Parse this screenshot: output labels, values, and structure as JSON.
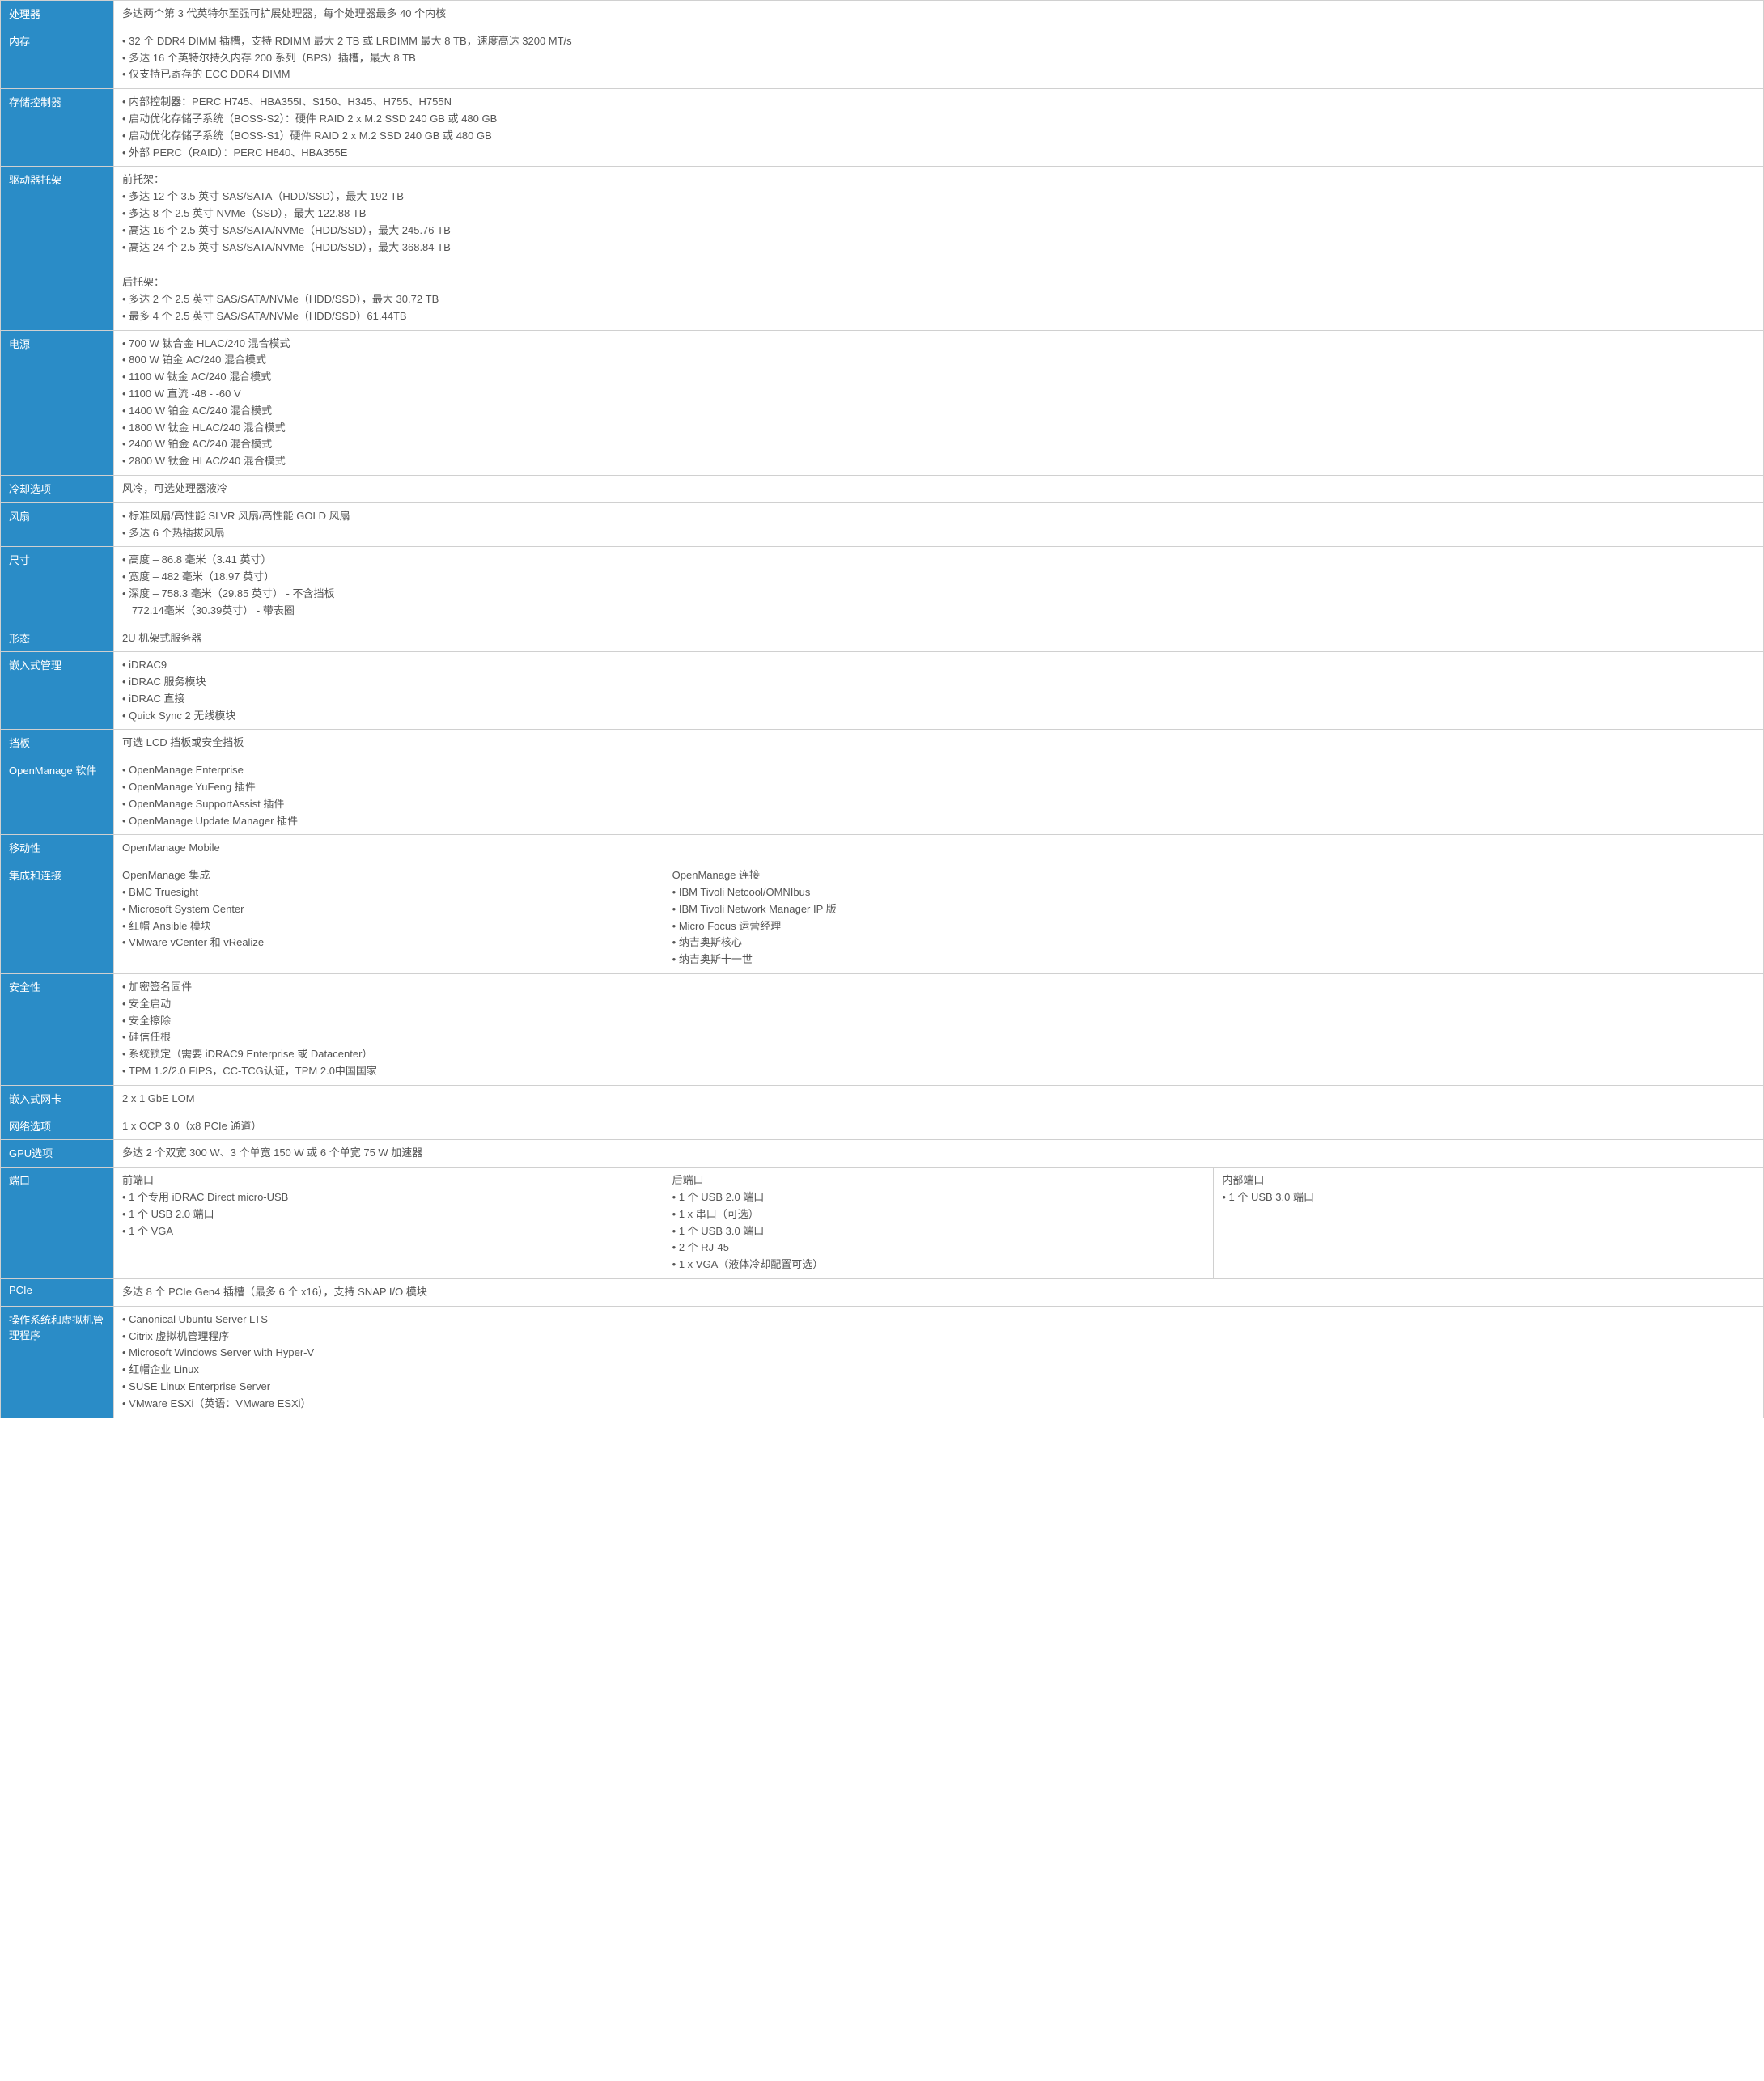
{
  "colors": {
    "header_bg": "#2a8cc7",
    "header_text": "#ffffff",
    "border": "#d0d0d0",
    "text": "#555555"
  },
  "rows": {
    "processor": {
      "label": "处理器",
      "value": "多达两个第 3 代英特尔至强可扩展处理器，每个处理器最多 40 个内核"
    },
    "memory": {
      "label": "内存",
      "lines": [
        "32 个 DDR4 DIMM 插槽，支持 RDIMM 最大 2 TB 或 LRDIMM 最大 8 TB，速度高达 3200 MT/s",
        "多达 16 个英特尔持久内存 200 系列（BPS）插槽，最大 8 TB",
        "仅支持已寄存的 ECC DDR4 DIMM"
      ]
    },
    "storage_ctrl": {
      "label": "存储控制器",
      "lines": [
        "内部控制器：PERC H745、HBA355I、S150、H345、H755、H755N",
        "启动优化存储子系统（BOSS-S2）：硬件 RAID 2 x M.2 SSD 240 GB 或 480 GB",
        "启动优化存储子系统（BOSS-S1）硬件 RAID 2 x M.2 SSD 240 GB 或 480 GB",
        "外部 PERC（RAID）：PERC H840、HBA355E"
      ]
    },
    "drive_bays": {
      "label": "驱动器托架",
      "front_header": "前托架：",
      "front_lines": [
        "多达 12 个 3.5 英寸 SAS/SATA（HDD/SSD），最大 192 TB",
        "多达 8 个 2.5 英寸 NVMe（SSD），最大 122.88 TB",
        "高达 16 个 2.5 英寸 SAS/SATA/NVMe（HDD/SSD），最大 245.76 TB",
        "高达 24 个 2.5 英寸 SAS/SATA/NVMe（HDD/SSD），最大 368.84 TB"
      ],
      "rear_header": "后托架：",
      "rear_lines": [
        "多达 2 个 2.5 英寸 SAS/SATA/NVMe（HDD/SSD），最大 30.72 TB",
        "最多 4 个 2.5 英寸 SAS/SATA/NVMe（HDD/SSD）61.44TB"
      ]
    },
    "power": {
      "label": "电源",
      "lines": [
        "700 W 钛合金 HLAC/240 混合模式",
        "800 W 铂金 AC/240 混合模式",
        "1100 W 钛金 AC/240 混合模式",
        "1100 W 直流 -48 - -60 V",
        "1400 W 铂金 AC/240 混合模式",
        "1800 W 钛金 HLAC/240 混合模式",
        "2400 W 铂金 AC/240 混合模式",
        "2800 W 钛金 HLAC/240 混合模式"
      ]
    },
    "cooling": {
      "label": "冷却选项",
      "value": "风冷，可选处理器液冷"
    },
    "fans": {
      "label": "风扇",
      "lines": [
        "标准风扇/高性能 SLVR 风扇/高性能 GOLD 风扇",
        "多达 6 个热插拔风扇"
      ]
    },
    "dimensions": {
      "label": "尺寸",
      "lines": [
        "高度 – 86.8 毫米（3.41 英寸）",
        "宽度 – 482 毫米（18.97 英寸）",
        "深度 – 758.3 毫米（29.85 英寸） - 不含挡板"
      ],
      "extra": "772.14毫米（30.39英寸） - 带表圈"
    },
    "form_factor": {
      "label": "形态",
      "value": "2U 机架式服务器"
    },
    "embedded_mgmt": {
      "label": "嵌入式管理",
      "lines": [
        "iDRAC9",
        "iDRAC 服务模块",
        "iDRAC 直接",
        "Quick Sync 2 无线模块"
      ]
    },
    "bezel": {
      "label": "挡板",
      "value": "可选 LCD 挡板或安全挡板"
    },
    "openmanage_sw": {
      "label": "OpenManage 软件",
      "lines": [
        "OpenManage Enterprise",
        "OpenManage YuFeng 插件",
        "OpenManage SupportAssist 插件",
        "OpenManage Update Manager 插件"
      ]
    },
    "mobility": {
      "label": "移动性",
      "value": "OpenManage Mobile"
    },
    "integration": {
      "label": "集成和连接",
      "left_header": "OpenManage 集成",
      "left_lines": [
        "BMC Truesight",
        "Microsoft System Center",
        "红帽 Ansible 模块",
        "VMware vCenter 和 vRealize"
      ],
      "right_header": "OpenManage 连接",
      "right_lines": [
        "IBM Tivoli Netcool/OMNIbus",
        "IBM Tivoli Network Manager IP 版",
        "Micro Focus 运营经理",
        "纳吉奥斯核心",
        "纳吉奥斯十一世"
      ]
    },
    "security": {
      "label": "安全性",
      "lines": [
        "加密签名固件",
        "安全启动",
        "安全擦除",
        "硅信任根",
        "系统锁定（需要 iDRAC9 Enterprise 或 Datacenter）",
        "TPM 1.2/2.0 FIPS，CC-TCG认证，TPM 2.0中国国家"
      ]
    },
    "embedded_nic": {
      "label": "嵌入式网卡",
      "value": "2 x 1 GbE LOM"
    },
    "network_opts": {
      "label": "网络选项",
      "value": "1 x OCP 3.0（x8 PCIe 通道）"
    },
    "gpu_opts": {
      "label": "GPU选项",
      "value": "多达 2 个双宽 300 W、3 个单宽 150 W 或 6 个单宽 75 W 加速器"
    },
    "ports": {
      "label": "端口",
      "front_header": "前端口",
      "front_lines": [
        "1 个专用 iDRAC Direct micro-USB",
        "1 个 USB 2.0 端口",
        "1 个 VGA"
      ],
      "rear_header": "后端口",
      "rear_lines": [
        "1 个 USB 2.0 端口",
        "1 x 串口（可选）",
        "1 个 USB 3.0 端口",
        "2 个 RJ-45",
        "1 x VGA（液体冷却配置可选）"
      ],
      "internal_header": "内部端口",
      "internal_lines": [
        "1 个 USB 3.0 端口"
      ]
    },
    "pcie": {
      "label": "PCIe",
      "value": "多达 8 个 PCIe Gen4 插槽（最多 6 个 x16），支持 SNAP I/O 模块"
    },
    "os": {
      "label": "操作系统和虚拟机管理程序",
      "lines": [
        "Canonical Ubuntu Server LTS",
        "Citrix 虚拟机管理程序",
        "Microsoft Windows Server with Hyper-V",
        "红帽企业 Linux",
        "SUSE Linux Enterprise Server",
        "VMware ESXi（英语：VMware ESXi）"
      ]
    }
  }
}
